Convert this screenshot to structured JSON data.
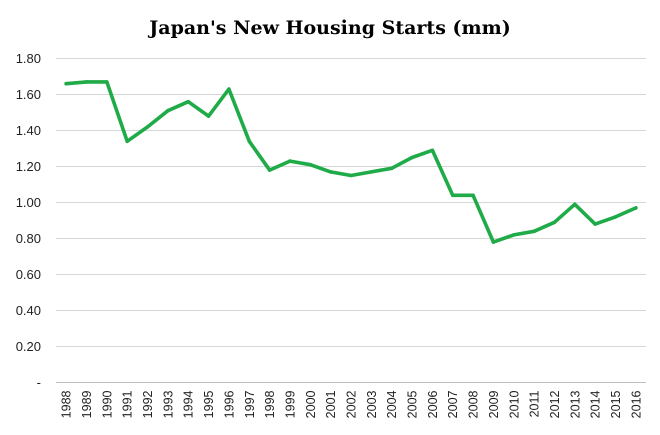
{
  "chart_data": {
    "type": "line",
    "title": "Japan's New Housing Starts (mm)",
    "xlabel": "",
    "ylabel": "",
    "ylim": [
      0,
      1.8
    ],
    "y_ticks": [
      {
        "value": 0,
        "label": "-"
      },
      {
        "value": 0.2,
        "label": "0.20"
      },
      {
        "value": 0.4,
        "label": "0.40"
      },
      {
        "value": 0.6,
        "label": "0.60"
      },
      {
        "value": 0.8,
        "label": "0.80"
      },
      {
        "value": 1.0,
        "label": "1.00"
      },
      {
        "value": 1.2,
        "label": "1.20"
      },
      {
        "value": 1.4,
        "label": "1.40"
      },
      {
        "value": 1.6,
        "label": "1.60"
      },
      {
        "value": 1.8,
        "label": "1.80"
      }
    ],
    "grid": true,
    "legend": "none",
    "categories": [
      "1988",
      "1989",
      "1990",
      "1991",
      "1992",
      "1993",
      "1994",
      "1995",
      "1996",
      "1997",
      "1998",
      "1999",
      "2000",
      "2001",
      "2002",
      "2003",
      "2004",
      "2005",
      "2006",
      "2007",
      "2008",
      "2009",
      "2010",
      "2011",
      "2012",
      "2013",
      "2014",
      "2015",
      "2016"
    ],
    "series": [
      {
        "color": "#1fab48",
        "values": [
          1.66,
          1.67,
          1.67,
          1.34,
          1.42,
          1.51,
          1.56,
          1.48,
          1.63,
          1.34,
          1.18,
          1.23,
          1.21,
          1.17,
          1.15,
          1.17,
          1.19,
          1.25,
          1.29,
          1.04,
          1.04,
          0.78,
          0.82,
          0.84,
          0.89,
          0.99,
          0.88,
          0.92,
          0.97
        ]
      }
    ]
  }
}
